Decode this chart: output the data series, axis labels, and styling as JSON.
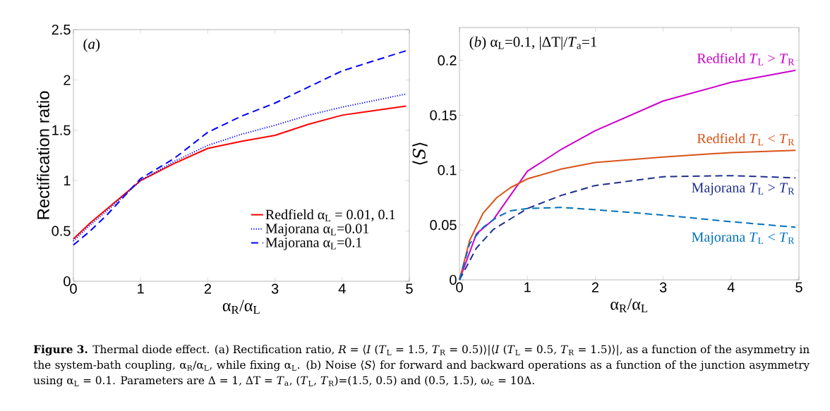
{
  "chart_data": [
    {
      "type": "line",
      "xlabel": "α$_{R}$/α$_{L}$",
      "ylabel": "Rectification ratio",
      "x": [
        0,
        0.25,
        0.5,
        1,
        1.5,
        2,
        2.5,
        3,
        3.5,
        4,
        4.95
      ],
      "series": [
        {
          "name": "Redfield α$_{L}$ = 0.01, 0.1",
          "color": "#ff0000",
          "line_style": "solid",
          "values": [
            0.42,
            0.58,
            0.72,
            1.0,
            1.17,
            1.32,
            1.39,
            1.45,
            1.56,
            1.65,
            1.74
          ]
        },
        {
          "name": "Majorana α$_{L}$=0.01",
          "color": "#0000ff",
          "line_style": "dotted",
          "values": [
            0.4,
            0.56,
            0.7,
            1.0,
            1.19,
            1.35,
            1.46,
            1.55,
            1.65,
            1.73,
            1.86
          ]
        },
        {
          "name": "Majorana α$_{L}$=0.1",
          "color": "#0000ff",
          "line_style": "dashed",
          "values": [
            0.36,
            0.5,
            0.66,
            1.02,
            1.22,
            1.48,
            1.64,
            1.77,
            1.93,
            2.09,
            2.29
          ]
        }
      ],
      "xlim": [
        0,
        5
      ],
      "ylim": [
        0,
        2.5
      ],
      "xticks": [
        0,
        1,
        2,
        3,
        4,
        5
      ],
      "yticks": [
        0,
        0.5,
        1,
        1.5,
        2,
        2.5
      ],
      "legend": "bottom right",
      "annotations": [
        "(*a*)",
        "**Figure 3.** Thermal diode effect. (a) Rectification ratio, *R* = ⟨*I* (*T*$_{L}$ = 1.5, *T*$_{R}$ = 0.5)⟩|⟨*I* (*T*$_{L}$ = 0.5, *T*$_{R}$ = 1.5)⟩|, as a function of the asymmetry in the system-bath coupling, α$_{R}$/α$_{L}$, while fixing α$_{L}$. (b) Noise ⟨*S*⟩ for forward and backward operations as a function of the junction asymmetry using α$_{L}$ = 0.1. Parameters are Δ = 1, ΔT = *T*$_{a}$, (*T*$_{L}$, *T*$_{R}$)=(1.5, 0.5) and (0.5, 1.5), ω$_{c}$ = 10Δ."
      ]
    },
    {
      "type": "line",
      "xlabel": "α$_{R}$/α$_{L}$",
      "ylabel": "⟨*S*⟩",
      "series": [
        {
          "name": "Redfield *T*$_{L}$ > *T*$_{R}$",
          "color": "#cc00cc",
          "line_style": "solid",
          "x": [
            0,
            0.25,
            0.5,
            1,
            1.5,
            2,
            3,
            4,
            4.95
          ],
          "values": [
            0,
            0.042,
            0.055,
            0.099,
            0.119,
            0.136,
            0.163,
            0.18,
            0.191
          ]
        },
        {
          "name": "Redfield *T*$_{L}$ < *T*$_{R}$",
          "color": "#d95319",
          "line_style": "solid",
          "x": [
            0,
            0.15,
            0.35,
            0.55,
            0.75,
            1,
            1.5,
            2,
            3,
            4,
            4.95
          ],
          "values": [
            0,
            0.036,
            0.061,
            0.075,
            0.084,
            0.092,
            0.101,
            0.107,
            0.112,
            0.116,
            0.118
          ]
        },
        {
          "name": "Majorana *T*$_{L}$ > *T*$_{R}$",
          "color": "#1f2f8f",
          "line_style": "dashed",
          "x": [
            0,
            0.25,
            0.5,
            1,
            1.5,
            2,
            3,
            4,
            4.95
          ],
          "values": [
            0,
            0.029,
            0.046,
            0.065,
            0.077,
            0.086,
            0.094,
            0.095,
            0.093
          ]
        },
        {
          "name": "Majorana *T*$_{L}$ < *T*$_{R}$",
          "color": "#0072bd",
          "line_style": "dashed",
          "x": [
            0,
            0.15,
            0.35,
            0.55,
            0.75,
            1,
            1.5,
            2,
            3,
            4,
            4.95
          ],
          "values": [
            0,
            0.033,
            0.048,
            0.057,
            0.063,
            0.065,
            0.066,
            0.064,
            0.059,
            0.053,
            0.048
          ]
        }
      ],
      "xlim": [
        0,
        5
      ],
      "ylim": [
        0,
        0.23
      ],
      "xticks": [
        0,
        1,
        2,
        3,
        4,
        5
      ],
      "yticks": [
        0,
        0.05,
        0.1,
        0.15,
        0.2
      ],
      "annotations": [
        "(*b*) α$_{L}$=0.1, |ΔT|/*T*$_{a}$=1"
      ]
    }
  ]
}
